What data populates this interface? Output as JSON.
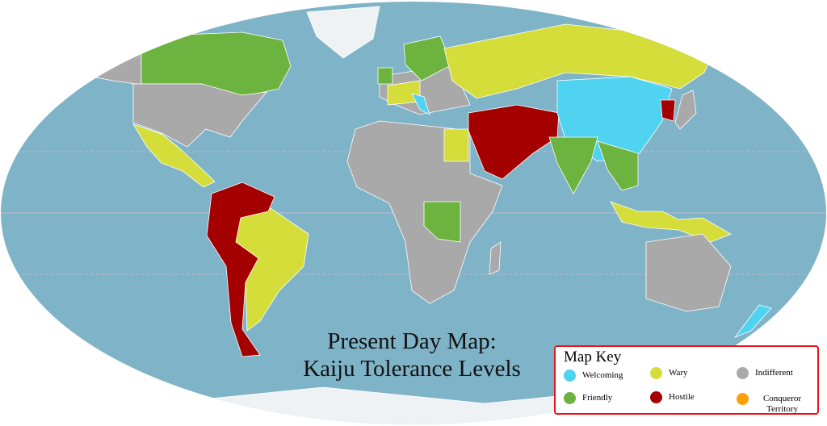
{
  "title": {
    "line1": "Present Day Map:",
    "line2": "Kaiju Tolerance Levels"
  },
  "legend": {
    "heading": "Map Key",
    "items": [
      {
        "label": "Welcoming",
        "color": "#4fd3f0"
      },
      {
        "label": "Wary",
        "color": "#d4dd3a"
      },
      {
        "label": "Indifferent",
        "color": "#a9a9a9"
      },
      {
        "label": "Friendly",
        "color": "#6db33f"
      },
      {
        "label": "Hostile",
        "color": "#a50000"
      },
      {
        "label": "Conqueror Territory",
        "color": "#ff9f0a"
      }
    ]
  },
  "colors": {
    "ocean": "#7fb3c7",
    "ice": "#eef2f4",
    "border": "#ffffff"
  }
}
